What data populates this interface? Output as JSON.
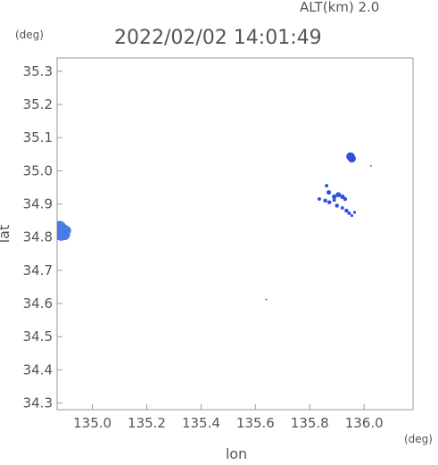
{
  "header": {
    "altitude_label": "ALT(km)  2.0",
    "timestamp": "2022/02/02 14:01:49",
    "y_unit": "(deg)",
    "x_unit": "(deg)"
  },
  "chart_data": {
    "type": "scatter",
    "xlabel": "lon",
    "ylabel": "lat",
    "xlim": [
      134.87,
      136.18
    ],
    "ylim": [
      34.28,
      35.34
    ],
    "x_ticks": [
      135.0,
      135.2,
      135.4,
      135.6,
      135.8,
      136.0
    ],
    "x_tick_labels": [
      "135.0",
      "135.2",
      "135.4",
      "135.6",
      "135.8",
      "136.0"
    ],
    "y_ticks": [
      34.3,
      34.4,
      34.5,
      34.6,
      34.7,
      34.8,
      34.9,
      35.0,
      35.1,
      35.2,
      35.3
    ],
    "y_tick_labels": [
      "34.3",
      "34.4",
      "34.5",
      "34.6",
      "34.7",
      "34.8",
      "34.9",
      "35.0",
      "35.1",
      "35.2",
      "35.3"
    ],
    "grid": false,
    "echoes": [
      {
        "lon": 134.88,
        "lat": 34.83,
        "size": 2.2,
        "color": "#4a7ae8"
      },
      {
        "lon": 134.885,
        "lat": 34.822,
        "size": 2.4,
        "color": "#4a7ae8"
      },
      {
        "lon": 134.895,
        "lat": 34.818,
        "size": 2.3,
        "color": "#4a7ae8"
      },
      {
        "lon": 134.885,
        "lat": 34.808,
        "size": 2.2,
        "color": "#4a7ae8"
      },
      {
        "lon": 134.897,
        "lat": 34.808,
        "size": 2.0,
        "color": "#4a7ae8"
      },
      {
        "lon": 134.905,
        "lat": 34.82,
        "size": 1.6,
        "color": "#4a7ae8"
      },
      {
        "lon": 135.95,
        "lat": 35.043,
        "size": 1.5,
        "color": "#2e4fe0"
      },
      {
        "lon": 135.955,
        "lat": 35.037,
        "size": 1.4,
        "color": "#2e4fe0"
      },
      {
        "lon": 135.862,
        "lat": 34.955,
        "size": 0.6,
        "color": "#2e4fe0"
      },
      {
        "lon": 135.87,
        "lat": 34.935,
        "size": 0.8,
        "color": "#2e4fe0"
      },
      {
        "lon": 135.835,
        "lat": 34.915,
        "size": 0.6,
        "color": "#2e4fe0"
      },
      {
        "lon": 135.857,
        "lat": 34.91,
        "size": 0.7,
        "color": "#2e4fe0"
      },
      {
        "lon": 135.872,
        "lat": 34.905,
        "size": 0.7,
        "color": "#2e4fe0"
      },
      {
        "lon": 135.89,
        "lat": 34.922,
        "size": 0.8,
        "color": "#2e4fe0"
      },
      {
        "lon": 135.905,
        "lat": 34.928,
        "size": 0.9,
        "color": "#2e4fe0"
      },
      {
        "lon": 135.92,
        "lat": 34.922,
        "size": 0.8,
        "color": "#2e4fe0"
      },
      {
        "lon": 135.93,
        "lat": 34.915,
        "size": 0.7,
        "color": "#2e4fe0"
      },
      {
        "lon": 135.9,
        "lat": 34.895,
        "size": 0.7,
        "color": "#2e4fe0"
      },
      {
        "lon": 135.92,
        "lat": 34.888,
        "size": 0.6,
        "color": "#2e4fe0"
      },
      {
        "lon": 135.935,
        "lat": 34.88,
        "size": 0.7,
        "color": "#2e4fe0"
      },
      {
        "lon": 135.945,
        "lat": 34.872,
        "size": 0.6,
        "color": "#2e4fe0"
      },
      {
        "lon": 135.955,
        "lat": 34.865,
        "size": 0.5,
        "color": "#2e4fe0"
      },
      {
        "lon": 135.965,
        "lat": 34.875,
        "size": 0.5,
        "color": "#2e4fe0"
      },
      {
        "lon": 135.89,
        "lat": 34.912,
        "size": 0.6,
        "color": "#2e4fe0"
      },
      {
        "lon": 136.025,
        "lat": 35.015,
        "size": 0.25,
        "color": "#333333"
      },
      {
        "lon": 135.64,
        "lat": 34.612,
        "size": 0.25,
        "color": "#333333"
      }
    ]
  }
}
